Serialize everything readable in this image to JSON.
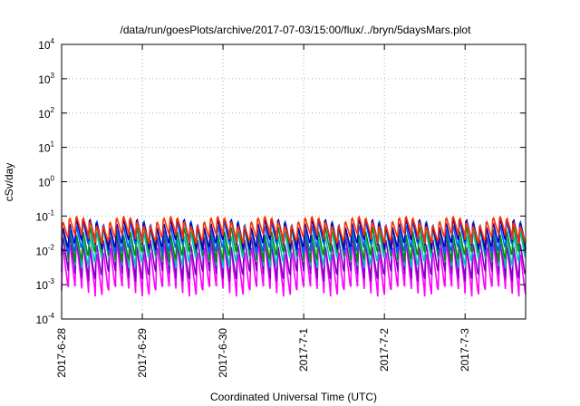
{
  "chart_data": {
    "type": "line",
    "title": "/data/run/goesPlots/archive/2017-07-03/15:00/flux/../bryn/5daysMars.plot",
    "xlabel": "Coordinated Universal Time (UTC)",
    "ylabel": "cSv/day",
    "yscale": "log",
    "ylim": [
      0.0001,
      10000
    ],
    "xlim": [
      "2017-06-28",
      "2017-07-03 18:00"
    ],
    "grid": true,
    "y_ticks": [
      {
        "base": "10",
        "exp": "-4",
        "value": 0.0001
      },
      {
        "base": "10",
        "exp": "-3",
        "value": 0.001
      },
      {
        "base": "10",
        "exp": "-2",
        "value": 0.01
      },
      {
        "base": "10",
        "exp": "-1",
        "value": 0.1
      },
      {
        "base": "10",
        "exp": "0",
        "value": 1
      },
      {
        "base": "10",
        "exp": "1",
        "value": 10
      },
      {
        "base": "10",
        "exp": "2",
        "value": 100
      },
      {
        "base": "10",
        "exp": "3",
        "value": 1000
      },
      {
        "base": "10",
        "exp": "4",
        "value": 10000
      }
    ],
    "x_ticks": [
      "2017-6-28",
      "2017-6-29",
      "2017-6-30",
      "2017-7-1",
      "2017-7-2",
      "2017-7-3"
    ],
    "period_hours": 2,
    "series": [
      {
        "color": "#ff00ff",
        "peak": 0.022,
        "trough": 0.0009
      },
      {
        "color": "#8000c0",
        "peak": 0.03,
        "trough": 0.0025
      },
      {
        "color": "#00c0c0",
        "peak": 0.05,
        "trough": 0.006
      },
      {
        "color": "#009000",
        "peak": 0.065,
        "trough": 0.009
      },
      {
        "color": "#0060ff",
        "peak": 0.09,
        "trough": 0.015
      },
      {
        "color": "#0000c0",
        "peak": 0.1,
        "trough": 0.02
      },
      {
        "color": "#ff3000",
        "peak": 0.11,
        "trough": 0.03
      }
    ]
  }
}
